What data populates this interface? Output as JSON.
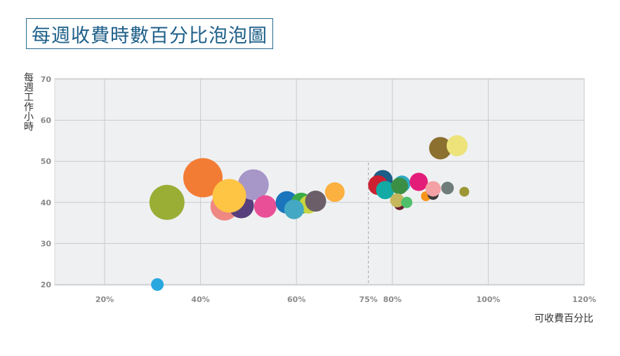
{
  "title": "每週收費時數百分比泡泡圖",
  "chart_data": {
    "type": "scatter",
    "title": "每週收費時數百分比泡泡圖",
    "xlabel": "可收費百分比",
    "ylabel": "每週工作小時",
    "xlim": [
      10,
      120
    ],
    "ylim": [
      18,
      70
    ],
    "x_ticks": [
      20,
      40,
      60,
      75,
      80,
      100,
      120
    ],
    "x_tick_labels": [
      "20%",
      "40%",
      "60%",
      "75%",
      "80%",
      "100%",
      "120%"
    ],
    "y_ticks": [
      20,
      30,
      40,
      50,
      60,
      70
    ],
    "y_tick_labels": [
      "20",
      "30",
      "40",
      "50",
      "60",
      "70"
    ],
    "reference_line_x": 75,
    "grid": true,
    "points": [
      {
        "x": 31.0,
        "y": 20.0,
        "size": 9,
        "color": "#29a8df"
      },
      {
        "x": 33.0,
        "y": 40.0,
        "size": 25,
        "color": "#9aae35"
      },
      {
        "x": 40.5,
        "y": 46.0,
        "size": 28,
        "color": "#f37c35"
      },
      {
        "x": 45.0,
        "y": 39.0,
        "size": 20,
        "color": "#ef8783"
      },
      {
        "x": 48.5,
        "y": 39.2,
        "size": 18,
        "color": "#573f7d"
      },
      {
        "x": 51.0,
        "y": 44.3,
        "size": 22,
        "color": "#a796c8"
      },
      {
        "x": 46.0,
        "y": 41.6,
        "size": 24,
        "color": "#fec444"
      },
      {
        "x": 53.5,
        "y": 39.0,
        "size": 16,
        "color": "#e94f97"
      },
      {
        "x": 58.0,
        "y": 40.0,
        "size": 16,
        "color": "#1b75bc"
      },
      {
        "x": 61.0,
        "y": 39.8,
        "size": 15,
        "color": "#3aaa49"
      },
      {
        "x": 62.5,
        "y": 39.5,
        "size": 13,
        "color": "#c8d53e"
      },
      {
        "x": 59.5,
        "y": 38.3,
        "size": 14,
        "color": "#43a8c3"
      },
      {
        "x": 64.0,
        "y": 40.3,
        "size": 15,
        "color": "#6b5e68"
      },
      {
        "x": 68.0,
        "y": 42.5,
        "size": 14,
        "color": "#fbb03f"
      },
      {
        "x": 78.0,
        "y": 45.5,
        "size": 14,
        "color": "#1b5e88"
      },
      {
        "x": 77.0,
        "y": 44.2,
        "size": 14,
        "color": "#cc2031"
      },
      {
        "x": 78.5,
        "y": 43.0,
        "size": 13,
        "color": "#13aaa5"
      },
      {
        "x": 81.5,
        "y": 39.5,
        "size": 8,
        "color": "#6b1f2e"
      },
      {
        "x": 82.0,
        "y": 44.5,
        "size": 12,
        "color": "#2eaac7"
      },
      {
        "x": 81.5,
        "y": 44.0,
        "size": 12,
        "color": "#3b8f45"
      },
      {
        "x": 81.0,
        "y": 40.5,
        "size": 10,
        "color": "#c6b75c"
      },
      {
        "x": 83.0,
        "y": 40.0,
        "size": 8,
        "color": "#4fbf6a"
      },
      {
        "x": 85.5,
        "y": 45.0,
        "size": 13,
        "color": "#e31c79"
      },
      {
        "x": 87.0,
        "y": 41.5,
        "size": 7,
        "color": "#f7941d"
      },
      {
        "x": 88.5,
        "y": 42.0,
        "size": 8,
        "color": "#3c3a3c"
      },
      {
        "x": 88.5,
        "y": 43.3,
        "size": 11,
        "color": "#f4a1a5"
      },
      {
        "x": 91.5,
        "y": 43.5,
        "size": 9,
        "color": "#6f7c7a"
      },
      {
        "x": 90.0,
        "y": 53.2,
        "size": 16,
        "color": "#8b7030"
      },
      {
        "x": 93.5,
        "y": 53.8,
        "size": 15,
        "color": "#ede37a"
      },
      {
        "x": 95.0,
        "y": 42.6,
        "size": 7,
        "color": "#9c9735"
      }
    ]
  }
}
